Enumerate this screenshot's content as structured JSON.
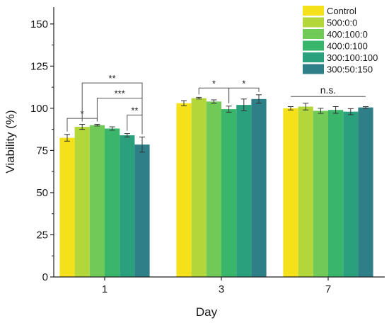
{
  "chart_data": {
    "type": "bar",
    "xlabel": "Day",
    "ylabel": "Viability (%)",
    "ylim": [
      0,
      160
    ],
    "yticks": [
      0,
      25,
      50,
      75,
      100,
      125,
      150
    ],
    "grid": false,
    "legend_position": "top-right",
    "categories": [
      "1",
      "3",
      "7"
    ],
    "series": [
      {
        "name": "Control",
        "color": "#f5e11a",
        "values": [
          82.5,
          103.0,
          100.0
        ],
        "errors": [
          2.0,
          1.5,
          1.0
        ]
      },
      {
        "name": "500:0:0",
        "color": "#b3d73a",
        "values": [
          89.0,
          106.0,
          101.0
        ],
        "errors": [
          1.5,
          0.5,
          2.0
        ]
      },
      {
        "name": "400:100:0",
        "color": "#71c957",
        "values": [
          90.0,
          104.0,
          98.5
        ],
        "errors": [
          0.5,
          1.0,
          1.5
        ]
      },
      {
        "name": "400:0:100",
        "color": "#3ab66c",
        "values": [
          88.0,
          99.5,
          99.0
        ],
        "errors": [
          1.0,
          1.8,
          2.0
        ]
      },
      {
        "name": "300:100:100",
        "color": "#2aa07d",
        "values": [
          84.0,
          102.0,
          98.0
        ],
        "errors": [
          1.0,
          3.5,
          1.8
        ]
      },
      {
        "name": "300:50:150",
        "color": "#2f7f88",
        "values": [
          78.5,
          105.5,
          100.5
        ],
        "errors": [
          4.5,
          2.5,
          0.5
        ]
      }
    ],
    "annotations": [
      {
        "text": "*",
        "category": 0,
        "from": 0,
        "to": 2,
        "y": 94
      },
      {
        "text": "**",
        "category": 0,
        "from": 1,
        "to": 5,
        "y": 115
      },
      {
        "text": "***",
        "category": 0,
        "from": 2,
        "to": 5,
        "y": 106
      },
      {
        "text": "**",
        "category": 0,
        "from": 4,
        "to": 5,
        "y": 96
      },
      {
        "text": "*",
        "category": 1,
        "from": 1,
        "to": 3,
        "y": 112
      },
      {
        "text": "*",
        "category": 1,
        "from": 3,
        "to": 5,
        "y": 112
      },
      {
        "text": "n.s.",
        "category": 2,
        "from": 0,
        "to": 5,
        "y": 107
      }
    ]
  }
}
